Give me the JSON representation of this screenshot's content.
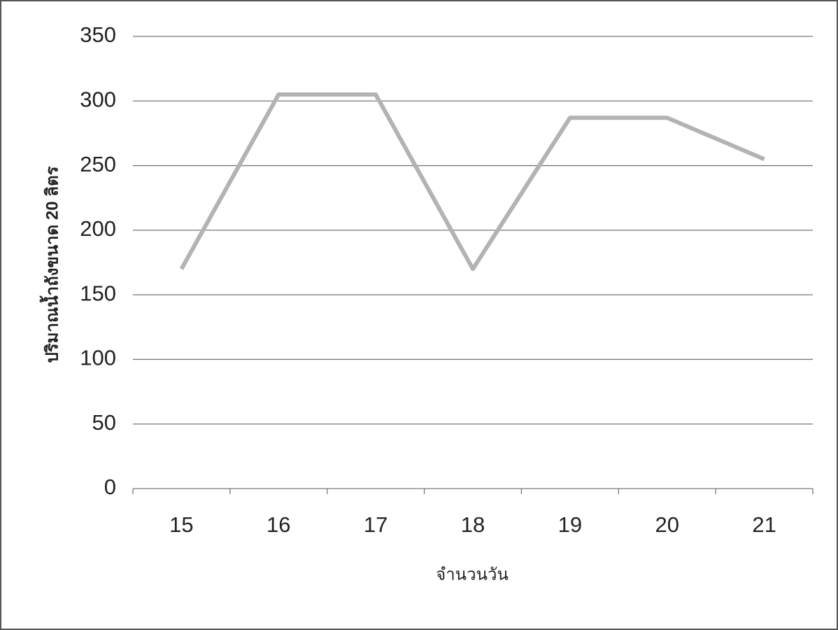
{
  "chart_data": {
    "type": "line",
    "x_label": "จำนวนวัน",
    "y_label": "ปริมาณน้ำถังขนาด 20 ลิตร",
    "categories": [
      "15",
      "16",
      "17",
      "18",
      "19",
      "20",
      "21"
    ],
    "values": [
      170,
      305,
      305,
      170,
      287,
      287,
      255
    ],
    "color": "#b3b3b3",
    "ylim": [
      0,
      350
    ],
    "yticks": [
      0,
      50,
      100,
      150,
      200,
      250,
      300,
      350
    ],
    "grid": true
  }
}
